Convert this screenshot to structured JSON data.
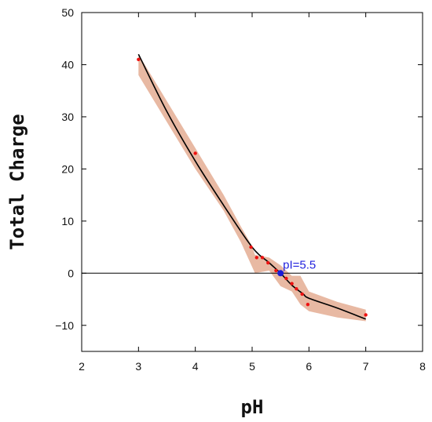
{
  "chart_data": {
    "type": "scatter",
    "title": "",
    "xlabel": "pH",
    "ylabel": "Total Charge",
    "xlim": [
      2,
      8
    ],
    "ylim": [
      -15,
      50
    ],
    "x_ticks": [
      2,
      3,
      4,
      5,
      6,
      7,
      8
    ],
    "y_ticks": [
      -10,
      0,
      10,
      20,
      30,
      40,
      50
    ],
    "grid": false,
    "legend": "none",
    "zero_line": 0,
    "points": {
      "x": [
        3.0,
        4.0,
        4.98,
        5.08,
        5.18,
        5.28,
        5.42,
        5.6,
        5.7,
        5.78,
        5.88,
        5.98,
        7.0
      ],
      "y": [
        41,
        23,
        5,
        3,
        3,
        2,
        0.5,
        -1,
        -2,
        -3,
        -4,
        -6,
        -8
      ],
      "color": "#ee1111"
    },
    "fit_curve": {
      "x": [
        3.0,
        3.5,
        4.0,
        4.5,
        5.0,
        5.3,
        5.5,
        5.7,
        5.9,
        6.0,
        6.5,
        7.0
      ],
      "y": [
        42,
        31,
        21.5,
        13,
        5,
        2,
        0,
        -2.3,
        -4,
        -4.8,
        -6.7,
        -8.8
      ],
      "color": "#000000"
    },
    "confidence_band": {
      "x": [
        3.0,
        3.5,
        4.0,
        4.5,
        4.8,
        5.0,
        5.05,
        5.3,
        5.5,
        5.7,
        5.85,
        6.0,
        6.5,
        7.0
      ],
      "upper": [
        42,
        33,
        24,
        15,
        9,
        5.2,
        3.5,
        3,
        1.5,
        -0.5,
        -0.5,
        -3.5,
        -5.5,
        -7
      ],
      "lower": [
        38,
        29,
        20,
        12,
        6,
        1.2,
        0,
        0.5,
        -2.5,
        -3.5,
        -6,
        -7.3,
        -8.5,
        -9.2
      ],
      "color": "#e8b9a3"
    },
    "highlight": {
      "x": 5.5,
      "y": 0,
      "color": "#1b1bd6",
      "label": "pI=5.5"
    }
  }
}
